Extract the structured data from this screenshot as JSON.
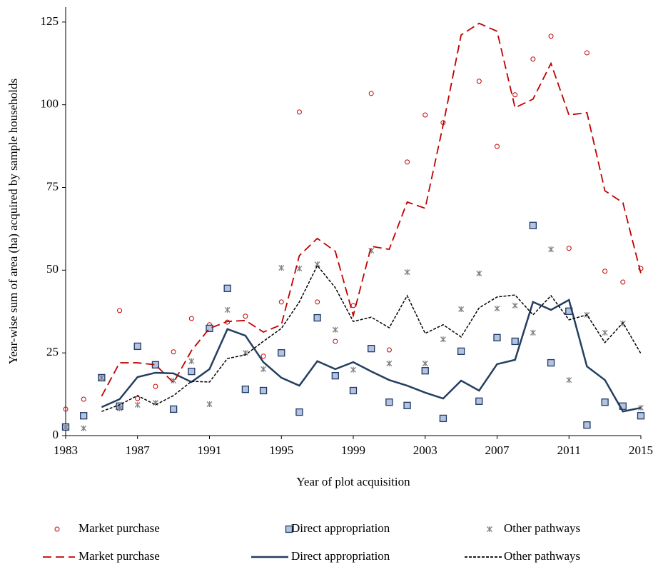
{
  "chart_data": {
    "type": "line",
    "x_label": "Year of plot acquisition",
    "y_label": "Year-wise sum of area (ha) acquired by sample households",
    "x": [
      1983,
      1984,
      1985,
      1986,
      1987,
      1988,
      1989,
      1990,
      1991,
      1992,
      1993,
      1994,
      1995,
      1996,
      1997,
      1998,
      1999,
      2000,
      2001,
      2002,
      2003,
      2004,
      2005,
      2006,
      2007,
      2008,
      2009,
      2010,
      2011,
      2012,
      2013,
      2014,
      2015
    ],
    "xlim": [
      1983,
      2015
    ],
    "xticks": [
      1983,
      1987,
      1991,
      1995,
      1999,
      2003,
      2007,
      2011,
      2015
    ],
    "ylim": [
      0,
      129.5
    ],
    "yticks": [
      0,
      25,
      50,
      75,
      100,
      125
    ],
    "series": [
      {
        "name": "Market purchase",
        "kind": "scatter",
        "marker": "circle",
        "color": "#c00000",
        "values": [
          8.0,
          11.0,
          17.5,
          37.8,
          11.2,
          14.9,
          25.3,
          35.4,
          33.5,
          34.3,
          36.1,
          24.0,
          40.4,
          97.8,
          40.4,
          28.5,
          39.3,
          103.4,
          25.9,
          82.7,
          96.9,
          94.6,
          null,
          107.1,
          87.4,
          103.0,
          113.8,
          120.7,
          56.6,
          115.7,
          49.7,
          46.4,
          50.5
        ]
      },
      {
        "name": "Direct appropriation",
        "kind": "scatter",
        "marker": "square",
        "color": "#1f3864",
        "values": [
          2.6,
          6.0,
          17.5,
          8.9,
          27.0,
          21.4,
          8.0,
          19.4,
          32.4,
          44.5,
          14.0,
          13.6,
          25.0,
          7.1,
          35.6,
          18.1,
          13.6,
          26.3,
          10.1,
          9.1,
          19.6,
          5.2,
          25.5,
          10.4,
          29.6,
          28.5,
          63.5,
          22.0,
          37.6,
          3.2,
          10.1,
          8.9,
          6.0
        ]
      },
      {
        "name": "Other pathways",
        "kind": "scatter",
        "marker": "x",
        "color": "#7f7f7f",
        "values": [
          2.6,
          2.2,
          17.5,
          8.2,
          9.3,
          9.9,
          16.6,
          22.5,
          9.5,
          38.0,
          25.0,
          20.1,
          50.7,
          50.5,
          51.8,
          32.0,
          19.9,
          55.9,
          21.8,
          49.4,
          21.8,
          29.1,
          38.2,
          49.0,
          38.4,
          39.3,
          31.1,
          56.3,
          16.8,
          36.5,
          31.1,
          33.9,
          8.4
        ]
      },
      {
        "name": "Market purchase",
        "kind": "line",
        "dash": "12 6",
        "color": "#c00000",
        "values": [
          null,
          null,
          11.9,
          22.0,
          22.0,
          21.4,
          16.0,
          25.7,
          32.4,
          34.5,
          34.8,
          31.3,
          33.5,
          54.4,
          59.6,
          55.7,
          36.3,
          57.2,
          56.3,
          70.6,
          68.7,
          93.9,
          121.1,
          124.6,
          122.2,
          99.1,
          101.7,
          112.5,
          96.9,
          97.6,
          74.0,
          70.4,
          49.0
        ]
      },
      {
        "name": "Direct appropriation",
        "kind": "line",
        "dash": "none",
        "color": "#243f60",
        "values": [
          null,
          null,
          8.6,
          11.0,
          17.7,
          19.0,
          18.8,
          16.2,
          20.1,
          32.2,
          30.2,
          22.2,
          17.5,
          15.1,
          22.5,
          20.1,
          22.2,
          19.4,
          16.8,
          15.1,
          13.0,
          11.2,
          16.6,
          13.6,
          21.6,
          22.9,
          40.4,
          38.0,
          41.0,
          20.9,
          16.8,
          7.3,
          8.4
        ]
      },
      {
        "name": "Other pathways",
        "kind": "line",
        "dash": "4 2",
        "color": "#000000",
        "values": [
          null,
          null,
          7.3,
          9.3,
          12.1,
          9.3,
          12.1,
          16.4,
          16.2,
          23.3,
          24.4,
          28.5,
          32.4,
          40.4,
          51.4,
          44.7,
          34.5,
          35.8,
          32.6,
          42.3,
          30.9,
          33.5,
          29.8,
          38.6,
          41.9,
          42.5,
          36.5,
          42.3,
          35.0,
          36.5,
          28.1,
          34.1,
          24.8
        ]
      }
    ]
  }
}
